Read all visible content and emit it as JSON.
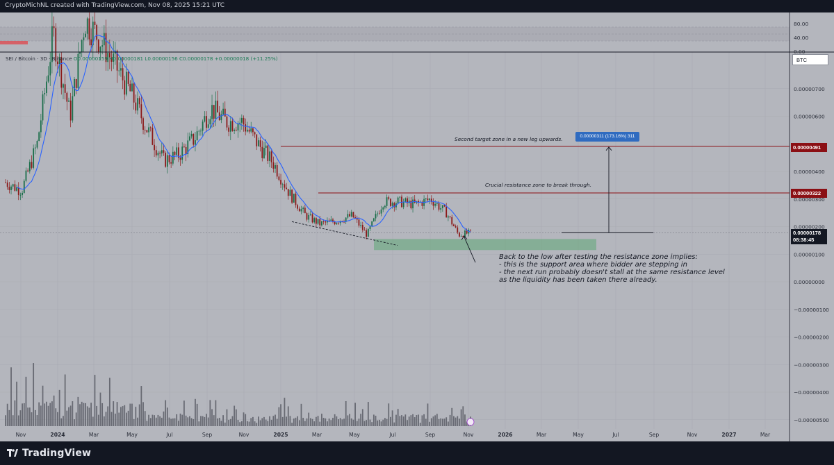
{
  "header": {
    "credit": "CryptoMichNL created with TradingView.com, Nov 08, 2025 15:21 UTC"
  },
  "legend": {
    "symbol": "SEI / Bitcoin · 3D · Binance",
    "ohlc": "O0.00000159 H0.00000181 L0.00000156 C0.00000178 +0.00000018 (+11.25%)"
  },
  "currency_button": "BTC",
  "rsi_panel": {
    "labels": [
      "80.00",
      "40.00",
      "0.00"
    ]
  },
  "price_axis": {
    "labels": [
      "0.00000700",
      "0.00000600",
      "0.00000400",
      "0.00000300",
      "0.00000200",
      "0.00000100",
      "0.00000000",
      "−0.00000100",
      "−0.00000200",
      "−0.00000300",
      "−0.00000400",
      "−0.00000500"
    ]
  },
  "price_tags": {
    "target": "0.00000491",
    "resistance": "0.00000322",
    "last_price": "0.00000178",
    "countdown": "08:38:45"
  },
  "measure_label": "0.00000311 (173.16%) 311",
  "annotations": {
    "target": "Second target zone in a new leg upwards.",
    "resistance": "Crucial resistance zone to break through.",
    "support_lines": [
      "Back to the low after testing the resistance zone implies:",
      "- this is the support area where bidder are stepping in",
      "- the next run probably doesn't stall at the same resistance level",
      "as the liquidity has been taken there already."
    ]
  },
  "time_axis": {
    "labels": [
      "Nov",
      "2024",
      "Mar",
      "May",
      "Jul",
      "Sep",
      "Nov",
      "2025",
      "Mar",
      "May",
      "Jul",
      "Sep",
      "Nov",
      "2026",
      "Mar",
      "May",
      "Jul",
      "Sep",
      "Nov",
      "2027",
      "Mar"
    ]
  },
  "footer": {
    "brand": "TradingView"
  },
  "colors": {
    "background": "#b4b6bd",
    "bull": "#1b6e4a",
    "bear": "#8b1a1a",
    "ma": "#2962ff",
    "resistance_line": "#8b0f14",
    "support_zone": "#5fa777",
    "volume": "#5a5d66"
  },
  "chart_data": {
    "type": "candlestick",
    "title": "SEI / Bitcoin · 3D · Binance",
    "x_range": [
      "2023-10",
      "2027-04"
    ],
    "ylim": [
      -5e-06,
      7.8e-06
    ],
    "levels": {
      "target": 4.91e-06,
      "resistance": 3.22e-06,
      "last": 1.78e-06,
      "support_zone": [
        1.15e-06,
        1.55e-06
      ]
    },
    "close_path": {
      "x": [
        "2023-10-20",
        "2023-11-15",
        "2023-12-10",
        "2024-01-05",
        "2024-02-01",
        "2024-02-25",
        "2024-03-20",
        "2024-04-15",
        "2024-05-10",
        "2024-06-05",
        "2024-07-01",
        "2024-07-25",
        "2024-08-20",
        "2024-09-15",
        "2024-10-10",
        "2024-11-05",
        "2024-11-30",
        "2024-12-25",
        "2025-01-20",
        "2025-02-15",
        "2025-03-10",
        "2025-04-05",
        "2025-05-01",
        "2025-05-25",
        "2025-06-20",
        "2025-07-15",
        "2025-08-10",
        "2025-09-05",
        "2025-09-30",
        "2025-10-20",
        "2025-11-08"
      ],
      "close": [
        3.6e-06,
        3.3e-06,
        5e-06,
        9e-06,
        6e-06,
        9.5e-06,
        8.8e-06,
        7.8e-06,
        6.8e-06,
        5.5e-06,
        4.4e-06,
        4.6e-06,
        5.2e-06,
        6.3e-06,
        5.8e-06,
        5.8e-06,
        5e-06,
        4.3e-06,
        3.2e-06,
        2.4e-06,
        2.1e-06,
        2.2e-06,
        2.4e-06,
        1.7e-06,
        2.9e-06,
        2.9e-06,
        2.8e-06,
        3e-06,
        2.5e-06,
        1.7e-06,
        1.78e-06
      ]
    },
    "rsi": {
      "y_labels": [
        80,
        40,
        0
      ]
    }
  }
}
